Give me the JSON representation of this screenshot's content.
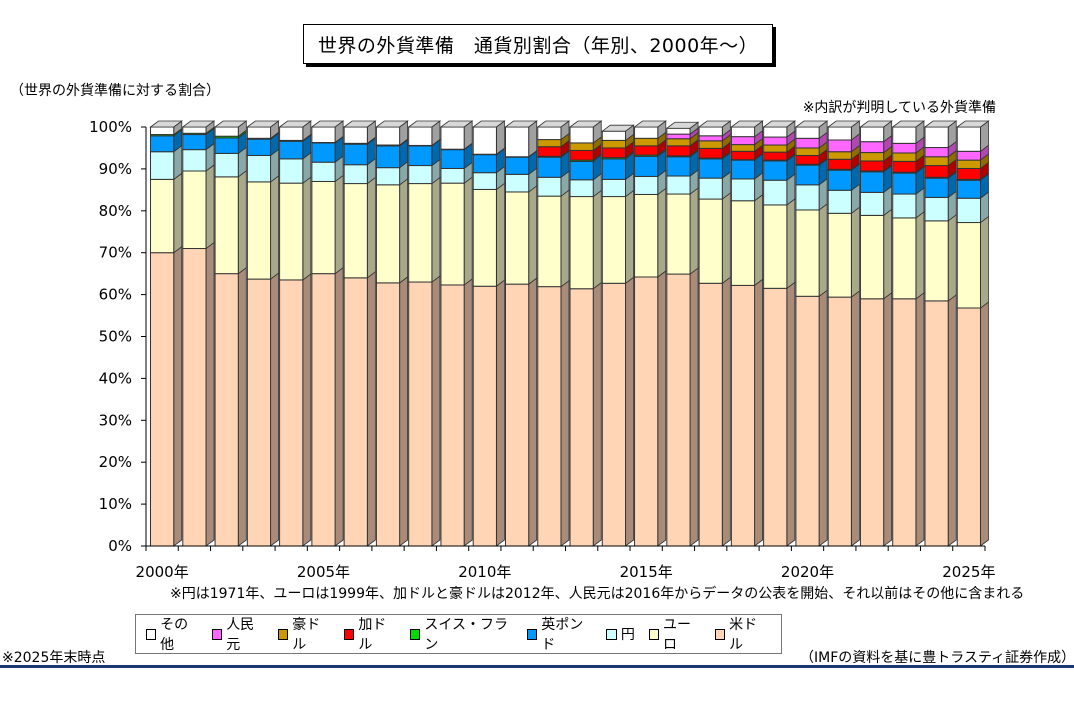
{
  "title": "世界の外貨準備　通貨別割合（年別、2000年～）",
  "y_caption": "（世界の外貨準備に対する割合）",
  "note_top": "※内訳が判明している外貨準備",
  "footnote": "※円は1971年、ユーロは1999年、加ドルと豪ドルは2012年、人民元は2016年からデータの公表を開始、それ以前はその他に含まれる",
  "as_of": "※2025年末時点",
  "source": "（IMFの資料を基に豊トラスティ証券作成）",
  "chart_data": {
    "type": "bar",
    "stacked": true,
    "three_d": true,
    "title": "世界の外貨準備　通貨別割合（年別、2000年～）",
    "xlabel": "",
    "ylabel": "（世界の外貨準備に対する割合）",
    "ylim": [
      0,
      100
    ],
    "y_ticks": [
      "0%",
      "10%",
      "20%",
      "30%",
      "40%",
      "50%",
      "60%",
      "70%",
      "80%",
      "90%",
      "100%"
    ],
    "x_tick_labels": [
      {
        "index": 0,
        "label": "2000年"
      },
      {
        "index": 5,
        "label": "2005年"
      },
      {
        "index": 10,
        "label": "2010年"
      },
      {
        "index": 15,
        "label": "2015年"
      },
      {
        "index": 20,
        "label": "2020年"
      },
      {
        "index": 25,
        "label": "2025年"
      }
    ],
    "categories": [
      "2000",
      "2001",
      "2002",
      "2003",
      "2004",
      "2005",
      "2006",
      "2007",
      "2008",
      "2009",
      "2010",
      "2011",
      "2012",
      "2013",
      "2014",
      "2015",
      "2016",
      "2017",
      "2018",
      "2019",
      "2020",
      "2021",
      "2022",
      "2023",
      "2024",
      "2025"
    ],
    "legend_position": "bottom",
    "series": [
      {
        "name": "米ドル",
        "color": "#ffd5b5",
        "side": "#a88b78",
        "values": [
          70.0,
          71.0,
          65.0,
          63.7,
          63.5,
          65.0,
          64.0,
          62.8,
          63.0,
          62.3,
          62.0,
          62.5,
          61.9,
          61.4,
          62.7,
          64.2,
          64.9,
          62.7,
          62.2,
          61.5,
          59.6,
          59.4,
          59.0,
          59.0,
          58.5,
          56.8
        ]
      },
      {
        "name": "ユーロ",
        "color": "#ffffcc",
        "side": "#a8a88a",
        "values": [
          17.5,
          18.5,
          23.1,
          23.2,
          23.1,
          22.0,
          22.5,
          23.4,
          23.5,
          24.3,
          23.1,
          22.0,
          21.6,
          22.0,
          20.7,
          19.7,
          19.1,
          20.1,
          20.2,
          19.9,
          20.6,
          20.0,
          19.9,
          19.3,
          19.1,
          20.4
        ]
      },
      {
        "name": "円",
        "color": "#ccffff",
        "side": "#8aa8a8",
        "values": [
          6.6,
          5.1,
          5.6,
          6.3,
          5.8,
          4.6,
          4.5,
          4.1,
          4.3,
          3.5,
          4.0,
          4.2,
          4.5,
          4.0,
          4.1,
          4.3,
          4.3,
          5.0,
          5.2,
          5.9,
          6.0,
          5.5,
          5.5,
          5.7,
          5.6,
          5.8
        ]
      },
      {
        "name": "英ポンド",
        "color": "#0099ff",
        "side": "#0068ad",
        "values": [
          3.8,
          3.6,
          3.7,
          3.9,
          4.2,
          4.6,
          4.9,
          5.2,
          4.7,
          4.5,
          4.3,
          4.1,
          4.8,
          4.4,
          4.9,
          4.8,
          4.6,
          4.6,
          4.5,
          4.6,
          4.7,
          4.8,
          4.9,
          5.0,
          4.6,
          4.3
        ]
      },
      {
        "name": "スイス・フラン",
        "color": "#00dd00",
        "side": "#009000",
        "values": [
          0.3,
          0.3,
          0.4,
          0.2,
          0.2,
          0.1,
          0.2,
          0.2,
          0.1,
          0.1,
          0.1,
          0.1,
          0.2,
          0.3,
          0.3,
          0.3,
          0.2,
          0.2,
          0.1,
          0.2,
          0.2,
          0.2,
          0.2,
          0.2,
          0.2,
          0.2
        ]
      },
      {
        "name": "加ドル",
        "color": "#ff0000",
        "side": "#b00000",
        "values": [
          0,
          0,
          0,
          0,
          0,
          0,
          0,
          0,
          0,
          0,
          0,
          0,
          2.3,
          2.3,
          2.3,
          2.2,
          2.4,
          2.3,
          2.0,
          1.9,
          2.1,
          2.4,
          2.4,
          2.6,
          2.8,
          2.6
        ]
      },
      {
        "name": "豪ドル",
        "color": "#cc9900",
        "side": "#8f6b00",
        "values": [
          0,
          0,
          0,
          0,
          0,
          0,
          0,
          0,
          0,
          0,
          0,
          0,
          1.7,
          1.8,
          1.8,
          1.8,
          1.7,
          1.8,
          1.6,
          1.7,
          1.8,
          1.8,
          2.0,
          2.0,
          2.1,
          2.0
        ]
      },
      {
        "name": "人民元",
        "color": "#ff66ff",
        "side": "#b048b0",
        "values": [
          0,
          0,
          0,
          0,
          0,
          0,
          0,
          0,
          0,
          0,
          0,
          0,
          0,
          0,
          0,
          0,
          1.1,
          1.2,
          1.9,
          1.9,
          2.3,
          2.8,
          2.6,
          2.3,
          2.2,
          2.1
        ]
      },
      {
        "name": "その他",
        "color": "#ffffff",
        "side": "#a0a0a0",
        "values": [
          1.8,
          1.5,
          2.2,
          2.7,
          3.2,
          3.7,
          3.9,
          4.3,
          4.4,
          5.3,
          6.5,
          7.1,
          3.0,
          3.8,
          2.2,
          2.7,
          1.4,
          2.1,
          2.3,
          2.4,
          2.7,
          3.1,
          3.5,
          3.9,
          4.9,
          5.8
        ]
      }
    ],
    "legend_order": [
      "その他",
      "人民元",
      "豪ドル",
      "加ドル",
      "スイス・フラン",
      "英ポンド",
      "円",
      "ユーロ",
      "米ドル"
    ]
  },
  "legend": [
    {
      "label": "その他",
      "color": "#ffffff"
    },
    {
      "label": "人民元",
      "color": "#ff66ff"
    },
    {
      "label": "豪ドル",
      "color": "#cc9900"
    },
    {
      "label": "加ドル",
      "color": "#ff0000"
    },
    {
      "label": "スイス・フラン",
      "color": "#00dd00"
    },
    {
      "label": "英ポンド",
      "color": "#0099ff"
    },
    {
      "label": "円",
      "color": "#ccffff"
    },
    {
      "label": "ユーロ",
      "color": "#ffffcc"
    },
    {
      "label": "米ドル",
      "color": "#ffd5b5"
    }
  ]
}
